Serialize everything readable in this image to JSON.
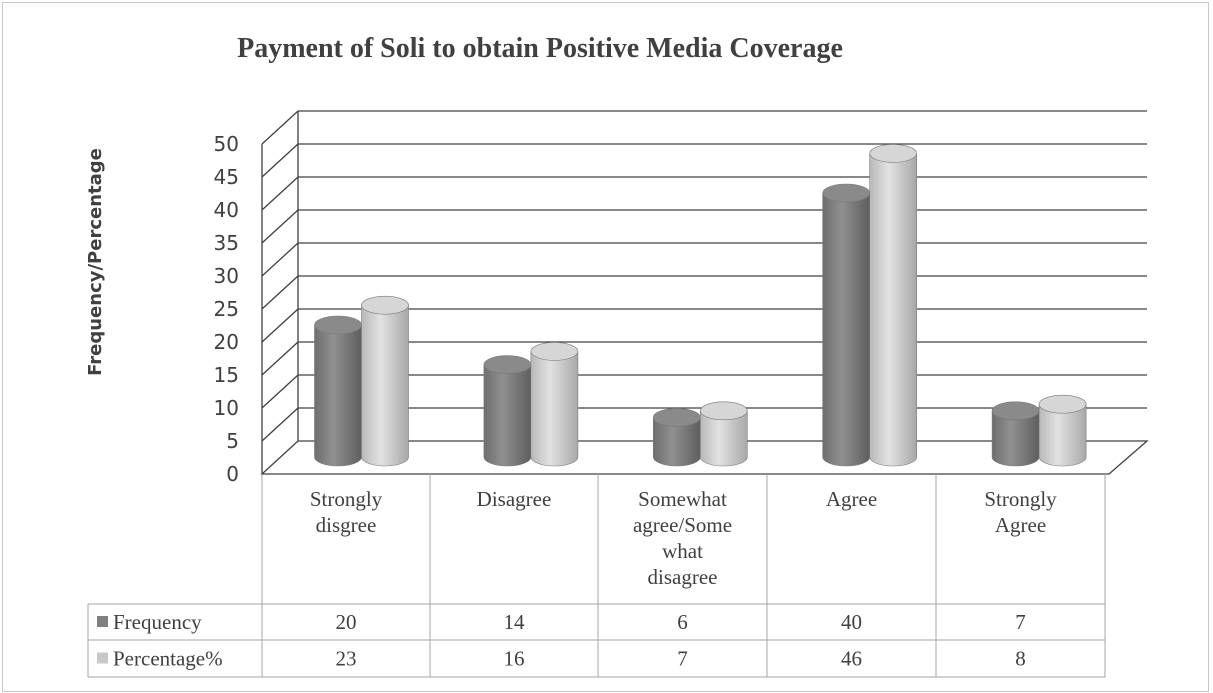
{
  "chart_data": {
    "type": "bar",
    "title": "Payment of Soli to obtain Positive Media Coverage",
    "ylabel": "Frequency/Percentage",
    "xlabel": "",
    "ylim": [
      0,
      50
    ],
    "yticks": [
      "0",
      "5",
      "10",
      "15",
      "20",
      "25",
      "30",
      "35",
      "40",
      "45",
      "50"
    ],
    "categories": [
      [
        "Strongly",
        "disgree"
      ],
      [
        "Disagree"
      ],
      [
        "Somewhat",
        "agree/Some",
        "what",
        "disagree"
      ],
      [
        "Agree"
      ],
      [
        "Strongly",
        "Agree"
      ]
    ],
    "series": [
      {
        "name": "Frequency",
        "values": [
          20,
          14,
          6,
          40,
          7
        ],
        "color": "#808080",
        "labels": [
          "20",
          "14",
          "6",
          "40",
          "7"
        ]
      },
      {
        "name": "Percentage%",
        "values": [
          23,
          16,
          7,
          46,
          8
        ],
        "color": "#c8c8c8",
        "labels": [
          "23",
          "16",
          "7",
          "46",
          "8"
        ]
      }
    ],
    "grid": true,
    "style": "3d-cylinder",
    "legend": "data-table"
  }
}
